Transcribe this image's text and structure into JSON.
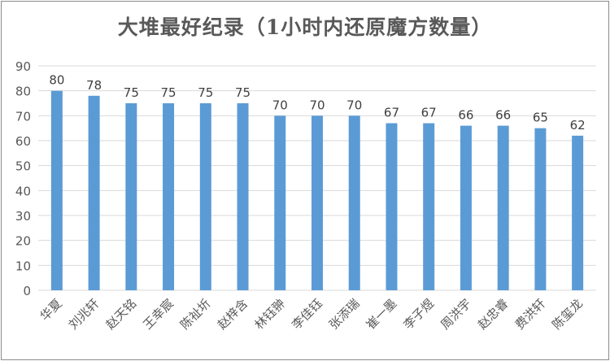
{
  "chart_data": {
    "type": "bar",
    "title": "大堆最好纪录（1小时内还原魔方数量）",
    "xlabel": "",
    "ylabel": "",
    "categories": [
      "华夏",
      "刘兆轩",
      "赵天铭",
      "王幸宸",
      "陈祉圻",
      "赵梓含",
      "林钰翀",
      "李佳钰",
      "张添瑞",
      "崔一墨",
      "李子煜",
      "周洪宇",
      "赵忠睿",
      "费洪轩",
      "陈玺龙"
    ],
    "values": [
      80,
      78,
      75,
      75,
      75,
      75,
      70,
      70,
      70,
      67,
      67,
      66,
      66,
      65,
      62
    ],
    "ylim": [
      0,
      90
    ],
    "yticks": [
      0,
      10,
      20,
      30,
      40,
      50,
      60,
      70,
      80,
      90
    ],
    "grid": true,
    "legend": "none",
    "data_labels": true,
    "bar_color": "#5b9bd5",
    "grid_color": "#d9d9d9",
    "text_color": "#595959"
  }
}
